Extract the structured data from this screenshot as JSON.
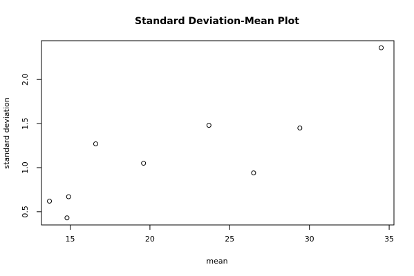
{
  "chart_data": {
    "type": "scatter",
    "title": "Standard Deviation-Mean Plot",
    "xlabel": "mean",
    "ylabel": "standard deviation",
    "xlim": [
      13.2,
      35.3
    ],
    "ylim": [
      0.35,
      2.44
    ],
    "xticks": [
      15,
      20,
      25,
      30,
      35
    ],
    "yticks": [
      0.5,
      1.0,
      1.5,
      2.0
    ],
    "ytick_labels": [
      "0.5",
      "1.0",
      "1.5",
      "2.0"
    ],
    "grid": false,
    "points": [
      {
        "x": 13.7,
        "y": 0.62
      },
      {
        "x": 14.8,
        "y": 0.43
      },
      {
        "x": 14.9,
        "y": 0.67
      },
      {
        "x": 16.6,
        "y": 1.27
      },
      {
        "x": 19.6,
        "y": 1.05
      },
      {
        "x": 23.7,
        "y": 1.48
      },
      {
        "x": 26.5,
        "y": 0.94
      },
      {
        "x": 29.4,
        "y": 1.45
      },
      {
        "x": 34.5,
        "y": 2.36
      }
    ]
  }
}
